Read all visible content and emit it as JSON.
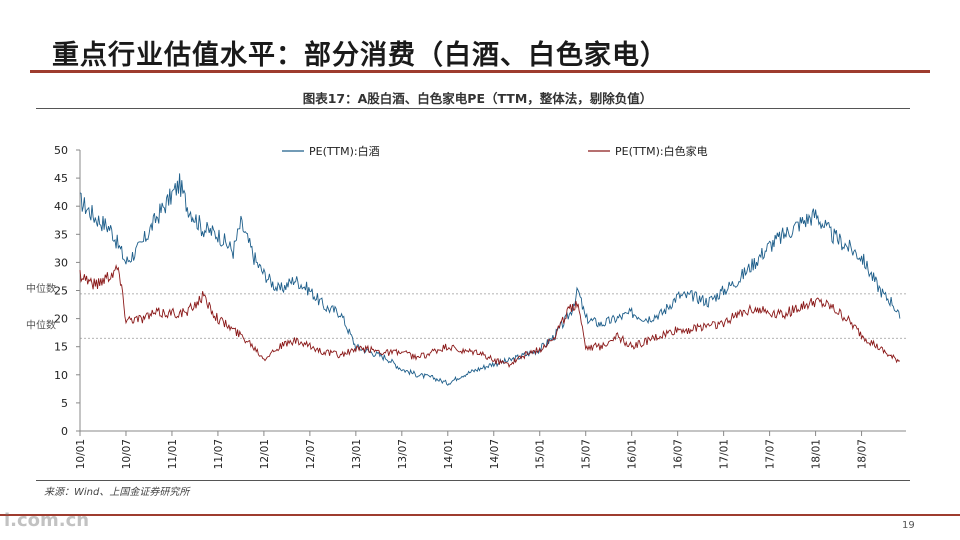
{
  "page": {
    "title": "重点行业估值水平：部分消费（白酒、白色家电）",
    "source": "来源：Wind、上国金证券研究所",
    "page_number": "19",
    "watermark": "i.com.cn",
    "colors": {
      "accent": "#9e3c2f",
      "series1": "#1f5f8b",
      "series2": "#8b1a1a"
    }
  },
  "chart_data": {
    "type": "line",
    "title": "图表17：A股白酒、白色家电PE（TTM，整体法，剔除负值）",
    "xlabel": "",
    "ylabel": "",
    "ylim": [
      0,
      50
    ],
    "yticks": [
      0,
      5,
      10,
      15,
      20,
      25,
      30,
      35,
      40,
      45,
      50
    ],
    "x_tick_labels": [
      "10/01",
      "10/07",
      "11/01",
      "11/07",
      "12/01",
      "12/07",
      "13/01",
      "13/07",
      "14/01",
      "14/07",
      "15/01",
      "15/07",
      "16/01",
      "16/07",
      "17/01",
      "17/07",
      "18/01",
      "18/07"
    ],
    "legend_position": "top",
    "grid": false,
    "reference_lines": [
      {
        "label": "中位数",
        "value": 24.4
      },
      {
        "label": "中位数",
        "value": 16.5
      }
    ],
    "series": [
      {
        "name": "PE(TTM):白酒",
        "color": "#1f5f8b",
        "x": [
          "2010-01",
          "2010-03",
          "2010-05",
          "2010-07",
          "2010-09",
          "2010-11",
          "2011-01",
          "2011-02",
          "2011-03",
          "2011-05",
          "2011-07",
          "2011-09",
          "2011-10",
          "2011-12",
          "2012-01",
          "2012-03",
          "2012-05",
          "2012-07",
          "2012-09",
          "2012-11",
          "2013-01",
          "2013-03",
          "2013-05",
          "2013-07",
          "2013-09",
          "2013-11",
          "2014-01",
          "2014-03",
          "2014-05",
          "2014-07",
          "2014-09",
          "2014-11",
          "2015-01",
          "2015-03",
          "2015-05",
          "2015-06",
          "2015-07",
          "2015-09",
          "2015-11",
          "2016-01",
          "2016-03",
          "2016-05",
          "2016-07",
          "2016-09",
          "2016-11",
          "2017-01",
          "2017-03",
          "2017-05",
          "2017-07",
          "2017-09",
          "2017-11",
          "2018-01",
          "2018-03",
          "2018-05",
          "2018-07",
          "2018-09",
          "2018-10",
          "2018-11",
          "2018-12"
        ],
        "values": [
          41,
          38,
          36,
          30,
          33,
          38,
          42,
          44,
          40,
          36,
          35,
          32,
          37,
          30,
          28,
          25,
          27,
          25,
          22,
          21,
          15,
          14,
          13,
          11,
          10,
          9.5,
          8.5,
          10,
          11,
          12,
          12.5,
          13.5,
          14.5,
          17,
          21,
          25,
          20,
          19,
          20,
          21,
          20,
          21,
          24,
          24,
          23,
          25,
          27,
          30,
          33,
          35,
          37,
          38.5,
          35,
          33,
          31,
          26,
          24,
          23,
          20
        ]
      },
      {
        "name": "PE(TTM):白色家电",
        "color": "#8b1a1a",
        "x": [
          "2010-01",
          "2010-03",
          "2010-05",
          "2010-06",
          "2010-07",
          "2010-09",
          "2010-11",
          "2011-01",
          "2011-03",
          "2011-05",
          "2011-07",
          "2011-09",
          "2011-11",
          "2012-01",
          "2012-03",
          "2012-05",
          "2012-07",
          "2012-09",
          "2012-11",
          "2013-01",
          "2013-03",
          "2013-05",
          "2013-07",
          "2013-09",
          "2013-11",
          "2014-01",
          "2014-03",
          "2014-05",
          "2014-07",
          "2014-09",
          "2014-11",
          "2015-01",
          "2015-03",
          "2015-05",
          "2015-06",
          "2015-07",
          "2015-09",
          "2015-11",
          "2016-01",
          "2016-03",
          "2016-05",
          "2016-07",
          "2016-09",
          "2016-11",
          "2017-01",
          "2017-03",
          "2017-05",
          "2017-07",
          "2017-09",
          "2017-11",
          "2018-01",
          "2018-03",
          "2018-05",
          "2018-07",
          "2018-09",
          "2018-11",
          "2018-12"
        ],
        "values": [
          28,
          26,
          28,
          29,
          20,
          20,
          21,
          21,
          21,
          24,
          20,
          18,
          16,
          13,
          15,
          16,
          15,
          14,
          13.5,
          14.5,
          14.5,
          14,
          14,
          13,
          14,
          15,
          14,
          14,
          12.5,
          12,
          13.5,
          14.5,
          17,
          22,
          23,
          15,
          15,
          17,
          15,
          16,
          17,
          18,
          18,
          19,
          19,
          21,
          22,
          21,
          21,
          22,
          23,
          22,
          20,
          17,
          15,
          13,
          12.5
        ]
      }
    ]
  }
}
